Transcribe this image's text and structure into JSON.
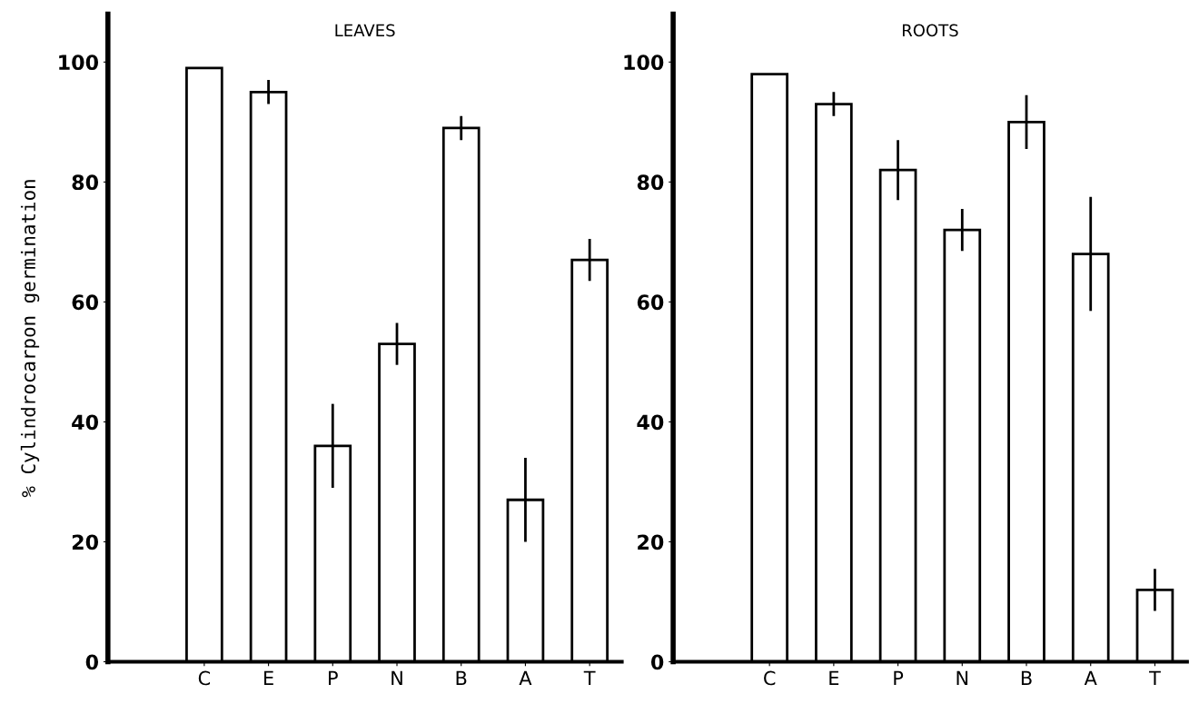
{
  "chart_data": [
    {
      "type": "bar",
      "title": "LEAVES",
      "ylabel": "% Cylindrocarpon germination",
      "categories": [
        "C",
        "E",
        "P",
        "N",
        "B",
        "A",
        "T"
      ],
      "color": "#ffffff",
      "values": [
        99,
        95,
        36,
        53,
        89,
        27,
        67
      ],
      "errors": [
        null,
        2,
        7,
        3.5,
        2,
        7,
        3.5
      ],
      "ylim": [
        0,
        108
      ],
      "yticks": [
        0,
        20,
        40,
        60,
        80,
        100
      ],
      "grid": false
    },
    {
      "type": "bar",
      "title": "ROOTS",
      "categories": [
        "C",
        "E",
        "P",
        "N",
        "B",
        "A",
        "T"
      ],
      "color": "#ffffff",
      "values": [
        98,
        93,
        82,
        72,
        90,
        68,
        12
      ],
      "errors": [
        null,
        2,
        5,
        3.5,
        4.5,
        9.5,
        3.5
      ],
      "ylim": [
        0,
        108
      ],
      "yticks": [
        0,
        20,
        40,
        60,
        80,
        100
      ],
      "grid": false
    }
  ]
}
